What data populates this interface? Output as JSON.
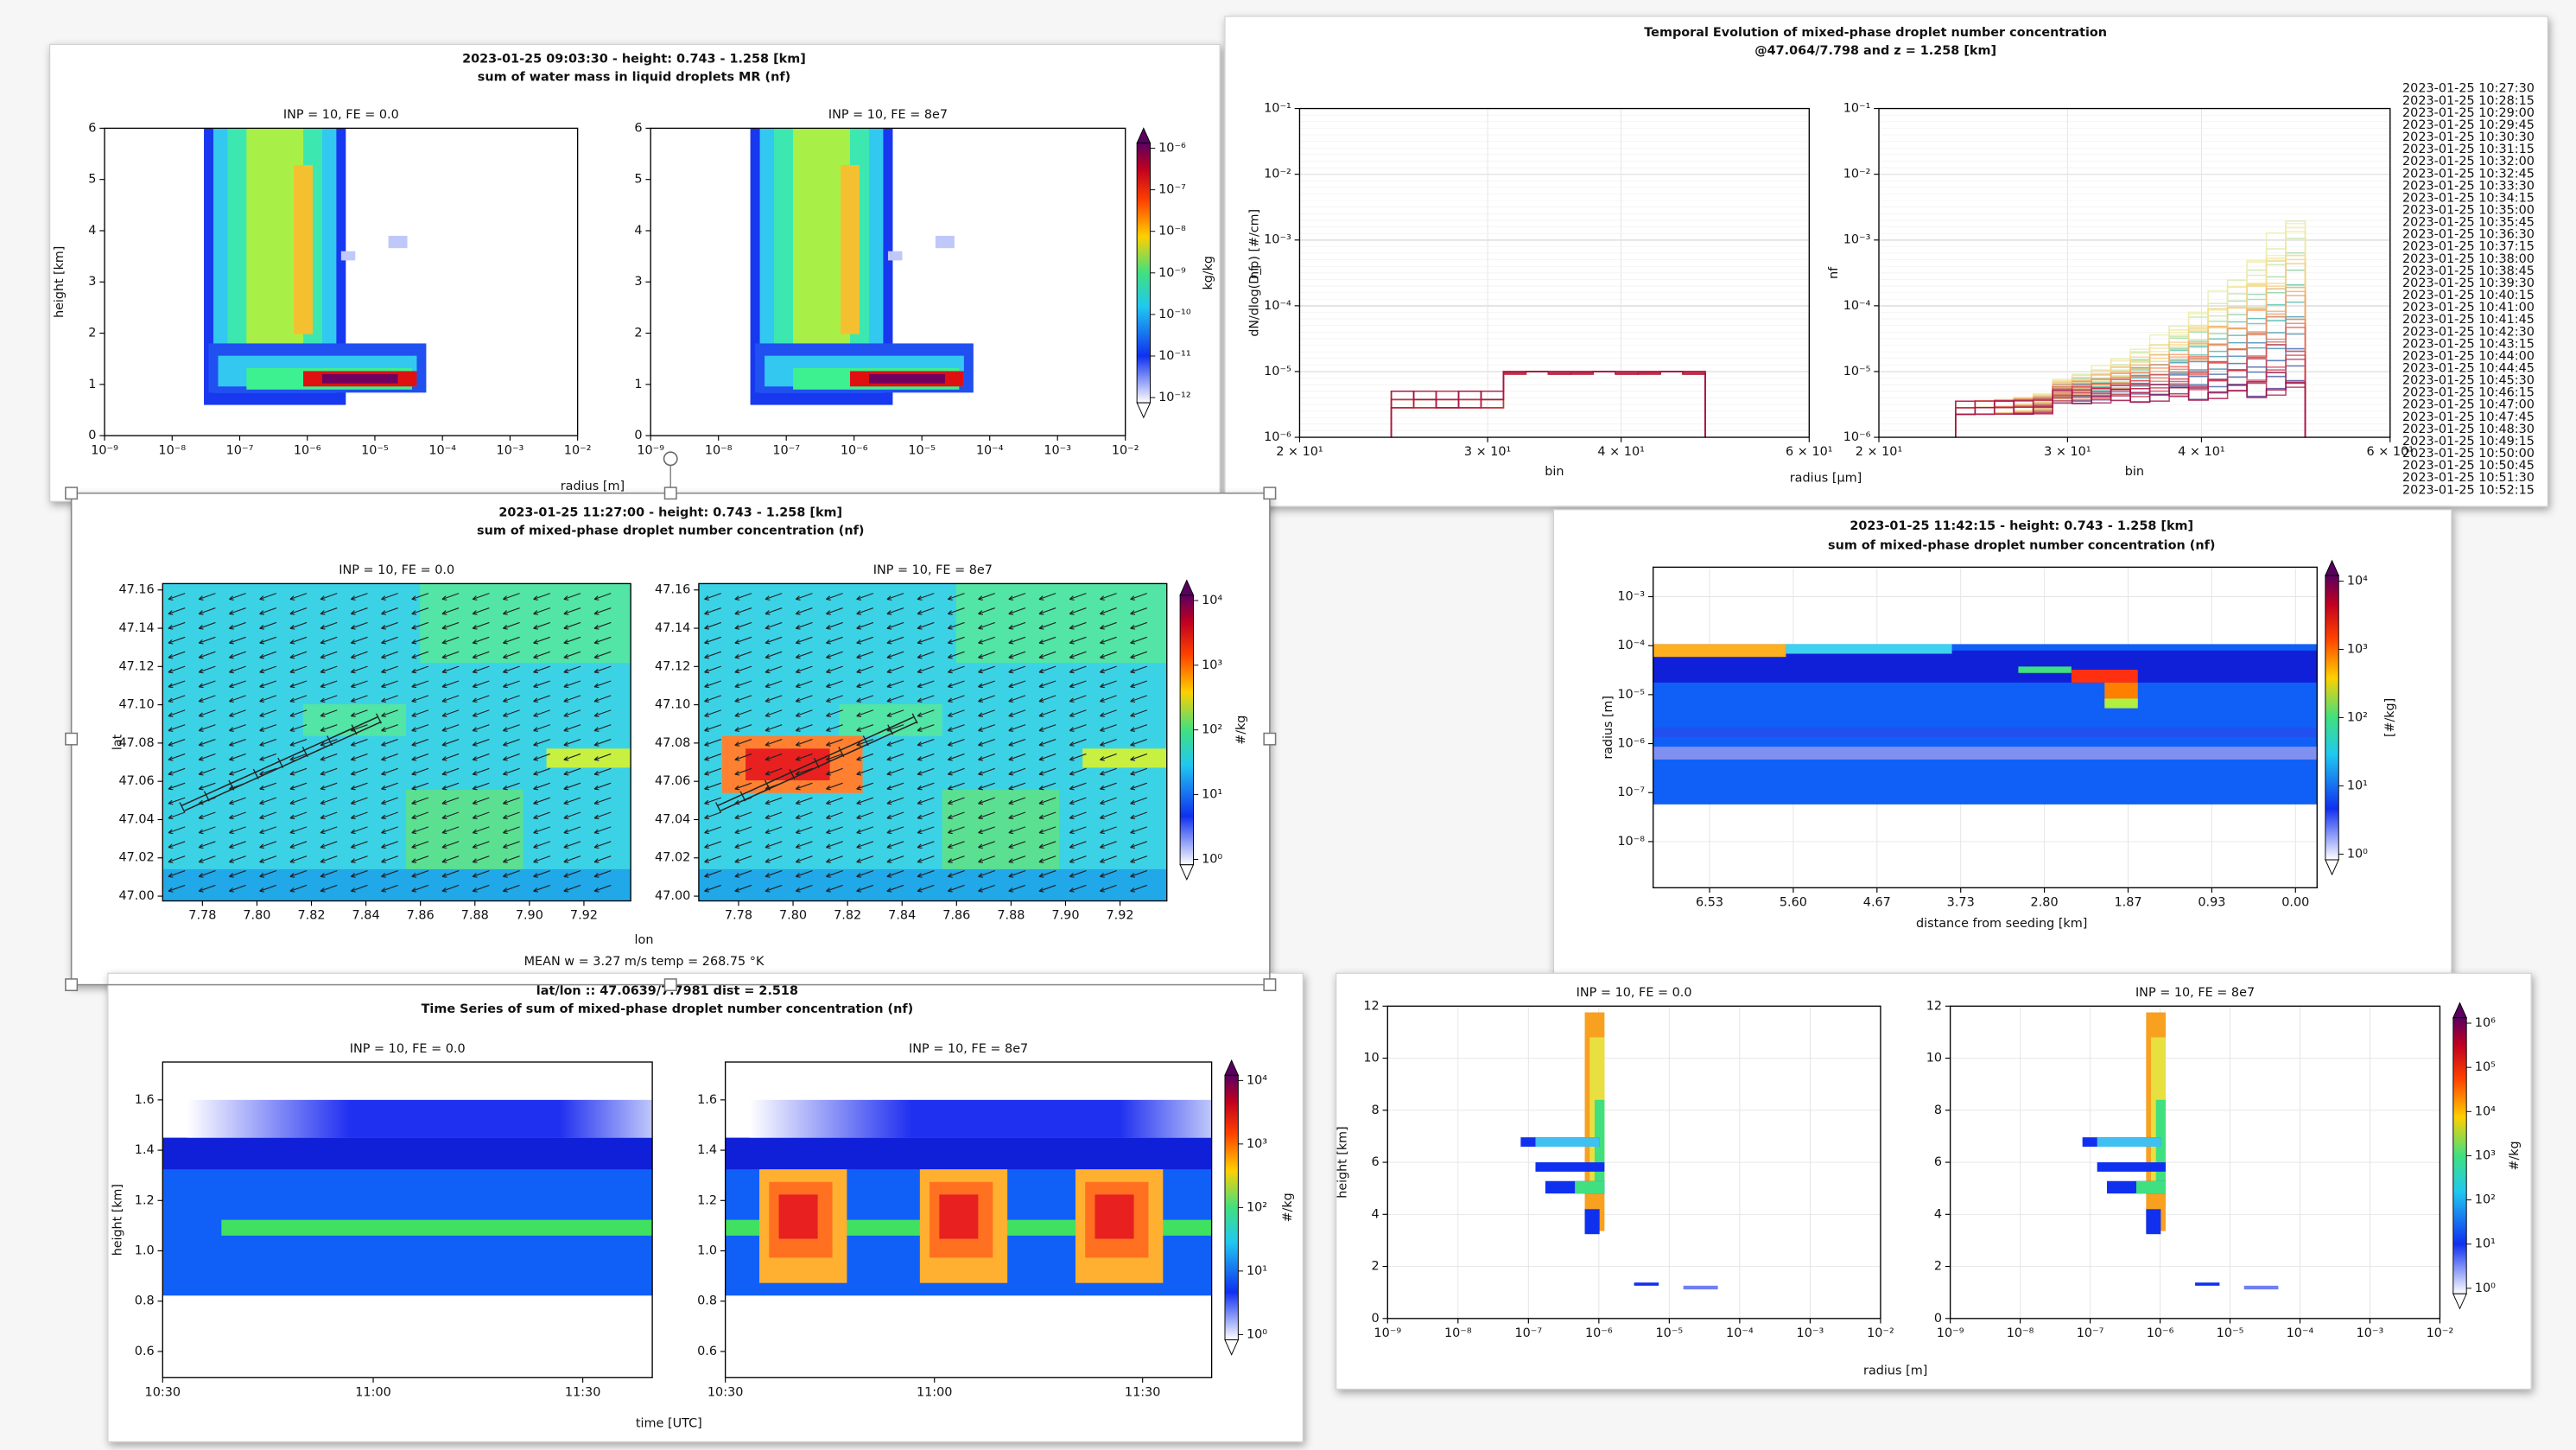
{
  "windows": [
    {
      "title": [
        "2023-01-25 09:03:30 - height: 0.743 - 1.258 [km]",
        "sum of water mass in liquid droplets MR (nf)"
      ],
      "panels": [
        {
          "subtitle": "INP = 10,  FE = 0.0",
          "ylabel": "height [km]"
        },
        {
          "subtitle": "INP = 10,  FE = 8e7"
        }
      ],
      "xticks": [
        "10⁻⁹",
        "10⁻⁸",
        "10⁻⁷",
        "10⁻⁶",
        "10⁻⁵",
        "10⁻⁴",
        "10⁻³",
        "10⁻²"
      ],
      "yticks": [
        "6",
        "5",
        "4",
        "3",
        "2",
        "1",
        "0"
      ],
      "xlabel": "radius [m]",
      "colorbar": {
        "ticks": [
          "10⁻⁶",
          "10⁻⁷",
          "10⁻⁸",
          "10⁻⁹",
          "10⁻¹⁰",
          "10⁻¹¹",
          "10⁻¹²"
        ],
        "label": "kg/kg"
      }
    },
    {
      "title": [
        "Temporal Evolution of mixed-phase droplet number concentration",
        "@47.064/7.798 and z = 1.258 [km]"
      ],
      "panels": [
        {
          "ylabel": "nf",
          "ylabel2": "dN/dlog(D_p) [#/cm]",
          "xlabel": "bin"
        },
        {
          "ylabel": "nf",
          "xlabel": "bin"
        }
      ],
      "xticks": [
        "2 × 10¹",
        "3 × 10¹",
        "4 × 10¹",
        "6 × 10¹"
      ],
      "yticks": [
        "10⁻¹",
        "10⁻²",
        "10⁻³",
        "10⁻⁴",
        "10⁻⁵",
        "10⁻⁶"
      ],
      "xlabel": "radius [µm]",
      "legend": [
        "2023-01-25 10:27:30",
        "2023-01-25 10:28:15",
        "2023-01-25 10:29:00",
        "2023-01-25 10:29:45",
        "2023-01-25 10:30:30",
        "2023-01-25 10:31:15",
        "2023-01-25 10:32:00",
        "2023-01-25 10:32:45",
        "2023-01-25 10:33:30",
        "2023-01-25 10:34:15",
        "2023-01-25 10:35:00",
        "2023-01-25 10:35:45",
        "2023-01-25 10:36:30",
        "2023-01-25 10:37:15",
        "2023-01-25 10:38:00",
        "2023-01-25 10:38:45",
        "2023-01-25 10:39:30",
        "2023-01-25 10:40:15",
        "2023-01-25 10:41:00",
        "2023-01-25 10:41:45",
        "2023-01-25 10:42:30",
        "2023-01-25 10:43:15",
        "2023-01-25 10:44:00",
        "2023-01-25 10:44:45",
        "2023-01-25 10:45:30",
        "2023-01-25 10:46:15",
        "2023-01-25 10:47:00",
        "2023-01-25 10:47:45",
        "2023-01-25 10:48:30",
        "2023-01-25 10:49:15",
        "2023-01-25 10:50:00",
        "2023-01-25 10:50:45",
        "2023-01-25 10:51:30",
        "2023-01-25 10:52:15"
      ]
    },
    {
      "title": [
        "2023-01-25 11:27:00 - height: 0.743 - 1.258 [km]",
        "sum of mixed-phase droplet number concentration (nf)"
      ],
      "panels": [
        {
          "subtitle": "INP = 10,  FE = 0.0",
          "ylabel": "lat"
        },
        {
          "subtitle": "INP = 10,  FE = 8e7"
        }
      ],
      "xticks": [
        "7.78",
        "7.80",
        "7.82",
        "7.84",
        "7.86",
        "7.88",
        "7.90",
        "7.92"
      ],
      "yticks": [
        "47.16",
        "47.14",
        "47.12",
        "47.10",
        "47.08",
        "47.06",
        "47.04",
        "47.02",
        "47.00"
      ],
      "xlabel": "lon",
      "footer": "MEAN  w = 3.27 m/s   temp = 268.75 °K",
      "colorbar": {
        "ticks": [
          "10⁴",
          "10³",
          "10²",
          "10¹",
          "10⁰"
        ],
        "label": "#/kg"
      }
    },
    {
      "title": [
        "2023-01-25 11:42:15 - height: 0.743 - 1.258 [km]",
        "sum of mixed-phase droplet number concentration (nf)"
      ],
      "panels": [
        {
          "ylabel": "radius [m]"
        }
      ],
      "xticks": [
        "6.53",
        "5.60",
        "4.67",
        "3.73",
        "2.80",
        "1.87",
        "0.93",
        "0.00"
      ],
      "yticks": [
        "10⁻³",
        "10⁻⁴",
        "10⁻⁵",
        "10⁻⁶",
        "10⁻⁷",
        "10⁻⁸"
      ],
      "xlabel": "distance from seeding [km]",
      "colorbar": {
        "ticks": [
          "10⁴",
          "10³",
          "10²",
          "10¹",
          "10⁰"
        ],
        "label": "[#/kg]"
      }
    },
    {
      "title": [
        "lat/lon :: 47.0639/7.7981  dist = 2.518",
        "Time Series of sum of mixed-phase droplet number concentration (nf)"
      ],
      "panels": [
        {
          "subtitle": "INP = 10,  FE = 0.0",
          "ylabel": "height [km]"
        },
        {
          "subtitle": "INP = 10,  FE = 8e7"
        }
      ],
      "xticks": [
        "10:30",
        "11:00",
        "11:30"
      ],
      "yticks": [
        "1.6",
        "1.4",
        "1.2",
        "1.0",
        "0.8",
        "0.6"
      ],
      "xlabel": "time [UTC]",
      "colorbar": {
        "ticks": [
          "10⁴",
          "10³",
          "10²",
          "10¹",
          "10⁰"
        ],
        "label": "#/kg"
      }
    },
    {
      "panels": [
        {
          "subtitle": "INP = 10,  FE = 0.0",
          "ylabel": "height [km]"
        },
        {
          "subtitle": "INP = 10,  FE = 8e7"
        }
      ],
      "xticks": [
        "10⁻⁹",
        "10⁻⁸",
        "10⁻⁷",
        "10⁻⁶",
        "10⁻⁵",
        "10⁻⁴",
        "10⁻³",
        "10⁻²"
      ],
      "yticks": [
        "12",
        "10",
        "8",
        "6",
        "4",
        "2",
        "0"
      ],
      "xlabel": "radius [m]",
      "colorbar": {
        "ticks": [
          "10⁶",
          "10⁵",
          "10⁴",
          "10³",
          "10²",
          "10¹",
          "10⁰"
        ],
        "label": "#/kg"
      }
    }
  ]
}
